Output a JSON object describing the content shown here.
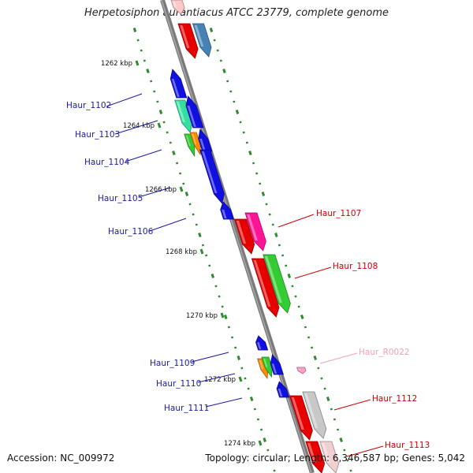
{
  "title": "Herpetosiphon aurantiacus ATCC 23779, complete genome",
  "footer": {
    "accession": "Accession: NC_009972",
    "topology": "Topology: circular; Length: 6,346,587 bp; Genes: 5,042"
  },
  "colors": {
    "backbone": "#777777",
    "tick": "#2e8b2e",
    "label_minus": "#1a1aa6",
    "label_plus": "#cc0000",
    "label_rna": "#f0a0c0"
  },
  "kbp_ticks": [
    {
      "label": "1262 kbp"
    },
    {
      "label": "1264 kbp"
    },
    {
      "label": "1266 kbp"
    },
    {
      "label": "1268 kbp"
    },
    {
      "label": "1270 kbp"
    },
    {
      "label": "1272 kbp"
    },
    {
      "label": "1274 kbp"
    }
  ],
  "gene_labels": [
    {
      "text": "Haur_1102",
      "color": "#1a1aa6"
    },
    {
      "text": "Haur_1103",
      "color": "#1a1aa6"
    },
    {
      "text": "Haur_1104",
      "color": "#1a1aa6"
    },
    {
      "text": "Haur_1105",
      "color": "#1a1aa6"
    },
    {
      "text": "Haur_1106",
      "color": "#1a1aa6"
    },
    {
      "text": "Haur_1107",
      "color": "#cc0000"
    },
    {
      "text": "Haur_1108",
      "color": "#cc0000"
    },
    {
      "text": "Haur_R0022",
      "color": "#f0a0c0"
    },
    {
      "text": "Haur_1109",
      "color": "#1a1aa6"
    },
    {
      "text": "Haur_1110",
      "color": "#1a1aa6"
    },
    {
      "text": "Haur_1111",
      "color": "#1a1aa6"
    },
    {
      "text": "Haur_1112",
      "color": "#cc0000"
    },
    {
      "text": "Haur_1113",
      "color": "#cc0000"
    }
  ]
}
